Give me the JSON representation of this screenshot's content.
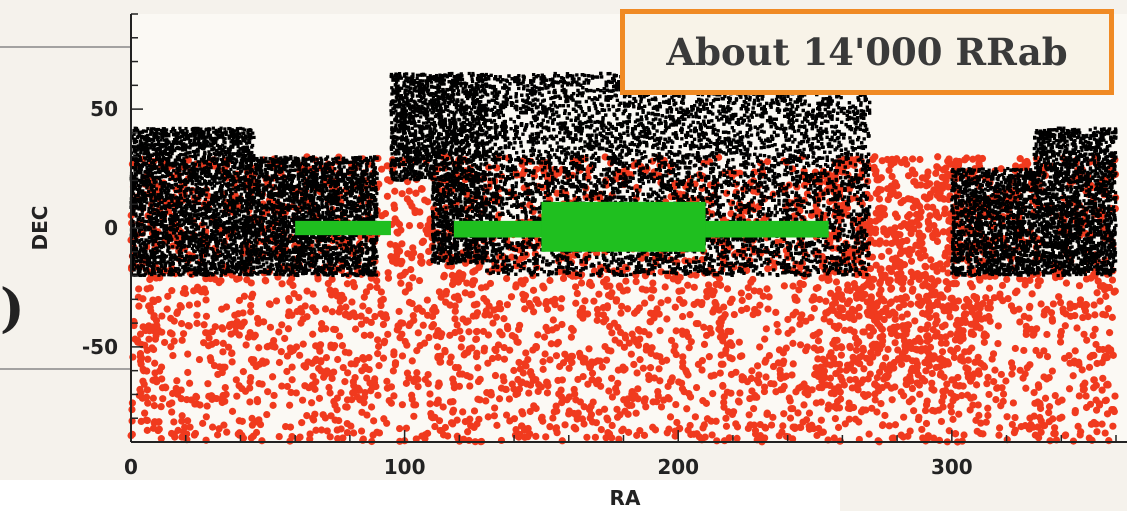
{
  "callout": {
    "text": "About 14'000 RRab",
    "border_color": "#f08a24"
  },
  "background_fragment": ")",
  "chart_data": {
    "type": "scatter",
    "title": "",
    "xlabel": "RA",
    "ylabel": "DEC",
    "xlim": [
      0,
      360
    ],
    "ylim": [
      -90,
      90
    ],
    "xticks": [
      0,
      100,
      200,
      300
    ],
    "yticks": [
      -50,
      0,
      50
    ],
    "grid": false,
    "series": [
      {
        "color": "#000000",
        "marker": "x",
        "regions": [
          {
            "ra": [
              0,
              45
            ],
            "dec": [
              -20,
              42
            ]
          },
          {
            "ra": [
              45,
              90
            ],
            "dec": [
              -20,
              30
            ]
          },
          {
            "ra": [
              95,
              110
            ],
            "dec": [
              20,
              65
            ]
          },
          {
            "ra": [
              110,
              130
            ],
            "dec": [
              -15,
              65
            ]
          },
          {
            "ra": [
              130,
              270
            ],
            "dec": [
              -20,
              65
            ]
          },
          {
            "ra": [
              300,
              330
            ],
            "dec": [
              -20,
              25
            ]
          },
          {
            "ra": [
              330,
              360
            ],
            "dec": [
              -20,
              42
            ]
          }
        ]
      },
      {
        "color": "#f03a1e",
        "marker": "o",
        "regions": [
          {
            "ra": [
              0,
              360
            ],
            "dec": [
              -90,
              30
            ]
          },
          {
            "ra": [
              250,
              310
            ],
            "dec": [
              -70,
              30
            ]
          }
        ]
      },
      {
        "color": "#1fbf1f",
        "marker": "s",
        "regions": [
          {
            "ra": [
              60,
              95
            ],
            "dec": [
              -3,
              3
            ]
          },
          {
            "ra": [
              118,
              255
            ],
            "dec": [
              -4,
              3
            ]
          },
          {
            "ra": [
              150,
              210
            ],
            "dec": [
              -10,
              11
            ]
          }
        ]
      }
    ]
  }
}
